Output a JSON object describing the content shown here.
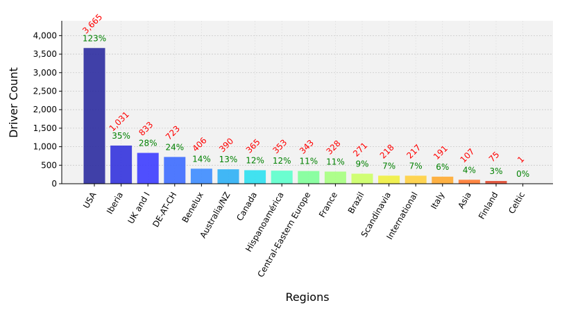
{
  "chart_data": {
    "type": "bar",
    "xlabel": "Regions",
    "ylabel": "Driver Count",
    "ylim": [
      0,
      4400
    ],
    "yticks": [
      0,
      500,
      1000,
      1500,
      2000,
      2500,
      3000,
      3500,
      4000
    ],
    "ytick_labels": [
      "0",
      "500",
      "1,000",
      "1,500",
      "2,000",
      "2,500",
      "3,000",
      "3,500",
      "4,000"
    ],
    "grid": true,
    "categories": [
      "USA",
      "Iberia",
      "UK and I",
      "DE-AT-CH",
      "Benelux",
      "Australia/NZ",
      "Canada",
      "Hispanoamérica",
      "Central-Eastern Europe",
      "France",
      "Brazil",
      "Scandinavia",
      "International",
      "Italy",
      "Asia",
      "Finland",
      "Celtic"
    ],
    "values": [
      3665,
      1031,
      833,
      723,
      406,
      390,
      365,
      353,
      343,
      328,
      271,
      218,
      217,
      191,
      107,
      75,
      1
    ],
    "count_labels": [
      "3,665",
      "1,031",
      "833",
      "723",
      "406",
      "390",
      "365",
      "353",
      "343",
      "328",
      "271",
      "218",
      "217",
      "191",
      "107",
      "75",
      "1"
    ],
    "percent_labels": [
      "123%",
      "35%",
      "28%",
      "24%",
      "14%",
      "13%",
      "12%",
      "12%",
      "11%",
      "11%",
      "9%",
      "7%",
      "7%",
      "6%",
      "4%",
      "3%",
      "0%"
    ],
    "bar_colors": [
      "#2c2ca0",
      "#3333dd",
      "#3d3dff",
      "#3d6bff",
      "#3d8cff",
      "#2eb0f5",
      "#2ee0f0",
      "#5cffcc",
      "#80ff99",
      "#a6ff80",
      "#ccff66",
      "#f0f040",
      "#ffd040",
      "#ffaa30",
      "#ff7a30",
      "#e04a30",
      "#c02020"
    ],
    "count_label_color": "#ff0000",
    "percent_label_color": "#008000",
    "plot_background": "#f2f2f2"
  }
}
